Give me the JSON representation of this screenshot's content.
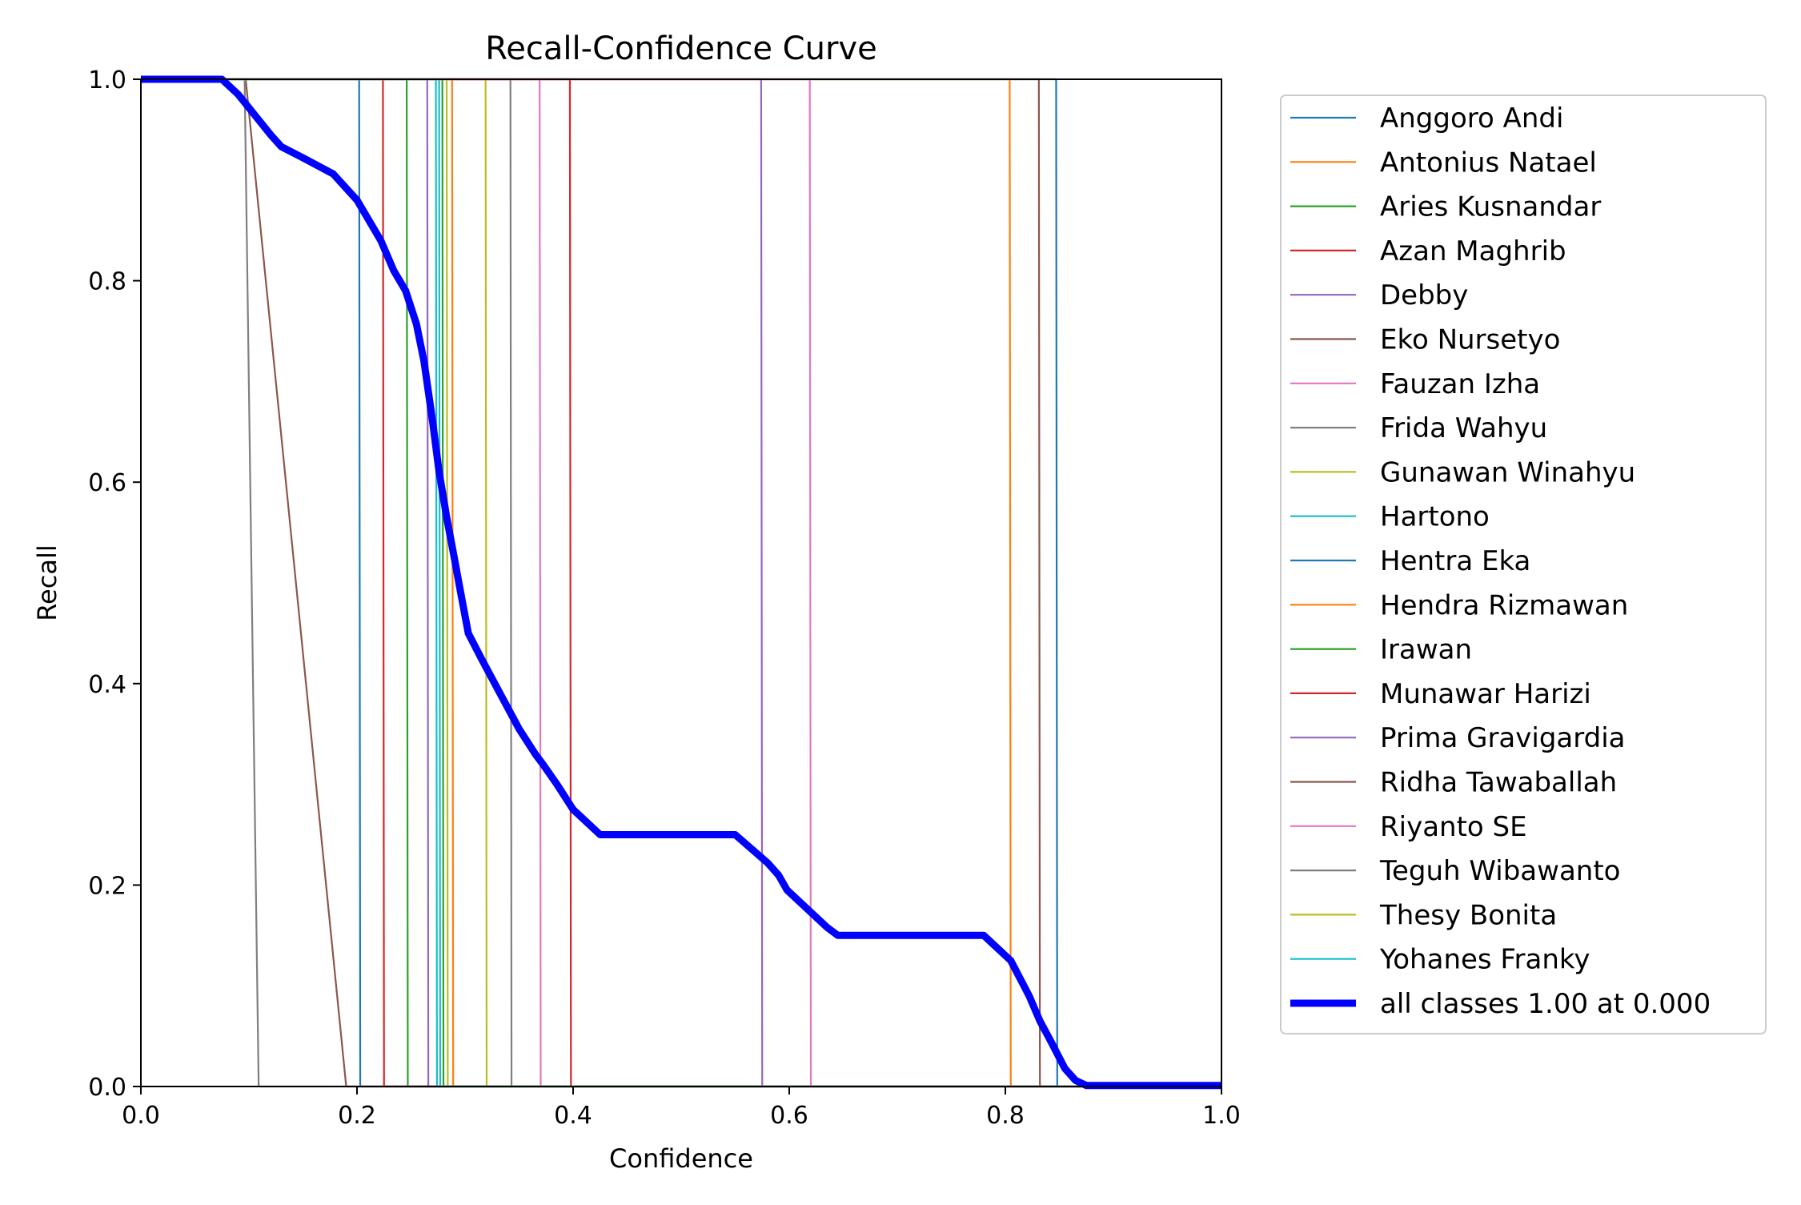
{
  "chart_data": {
    "type": "line",
    "title": "Recall-Confidence Curve",
    "xlabel": "Confidence",
    "ylabel": "Recall",
    "xlim": [
      0.0,
      1.0
    ],
    "ylim": [
      0.0,
      1.0
    ],
    "x_ticks": [
      "0.0",
      "0.2",
      "0.4",
      "0.6",
      "0.8",
      "1.0"
    ],
    "y_ticks": [
      "0.0",
      "0.2",
      "0.4",
      "0.6",
      "0.8",
      "1.0"
    ],
    "grid": false,
    "legend_position": "outside-right",
    "series": [
      {
        "name": "Anggoro Andi",
        "color": "#1f77b4",
        "x": [
          0,
          0.202,
          0.203,
          1.0
        ],
        "y": [
          1,
          1,
          0,
          0
        ]
      },
      {
        "name": "Antonius Natael",
        "color": "#ff7f0e",
        "x": [
          0,
          0.288,
          0.289,
          1.0
        ],
        "y": [
          1,
          1,
          0,
          0
        ]
      },
      {
        "name": "Aries Kusnandar",
        "color": "#2ca02c",
        "x": [
          0,
          0.246,
          0.247,
          1.0
        ],
        "y": [
          1,
          1,
          0,
          0
        ]
      },
      {
        "name": "Azan Maghrib",
        "color": "#d62728",
        "x": [
          0,
          0.224,
          0.225,
          1.0
        ],
        "y": [
          1,
          1,
          0,
          0
        ]
      },
      {
        "name": "Debby",
        "color": "#9467bd",
        "x": [
          0,
          0.265,
          0.266,
          1.0
        ],
        "y": [
          1,
          1,
          0,
          0
        ]
      },
      {
        "name": "Eko Nursetyo",
        "color": "#8c564b",
        "x": [
          0,
          0.831,
          0.832,
          1.0
        ],
        "y": [
          1,
          1,
          0,
          0
        ]
      },
      {
        "name": "Fauzan Izha",
        "color": "#e377c2",
        "x": [
          0,
          0.369,
          0.37,
          1.0
        ],
        "y": [
          1,
          1,
          0,
          0
        ]
      },
      {
        "name": "Frida Wahyu",
        "color": "#7f7f7f",
        "x": [
          0,
          0.342,
          0.343,
          1.0
        ],
        "y": [
          1,
          1,
          0,
          0
        ]
      },
      {
        "name": "Gunawan Winahyu",
        "color": "#bcbd22",
        "x": [
          0,
          0.319,
          0.32,
          1.0
        ],
        "y": [
          1,
          1,
          0,
          0
        ]
      },
      {
        "name": "Hartono",
        "color": "#17becf",
        "x": [
          0,
          0.276,
          0.277,
          1.0
        ],
        "y": [
          1,
          1,
          0,
          0
        ]
      },
      {
        "name": "Hentra Eka",
        "color": "#1f77b4",
        "x": [
          0,
          0.847,
          0.848,
          1.0
        ],
        "y": [
          1,
          1,
          0,
          0
        ]
      },
      {
        "name": "Hendra Rizmawan",
        "color": "#ff7f0e",
        "x": [
          0,
          0.804,
          0.805,
          1.0
        ],
        "y": [
          1,
          1,
          0,
          0
        ]
      },
      {
        "name": "Irawan",
        "color": "#2ca02c",
        "x": [
          0,
          0.279,
          0.28,
          1.0
        ],
        "y": [
          1,
          1,
          0,
          0
        ]
      },
      {
        "name": "Munawar Harizi",
        "color": "#d62728",
        "x": [
          0,
          0.397,
          0.398,
          1.0
        ],
        "y": [
          1,
          1,
          0,
          0
        ]
      },
      {
        "name": "Prima Gravigardia",
        "color": "#9467bd",
        "x": [
          0,
          0.574,
          0.575,
          1.0
        ],
        "y": [
          1,
          1,
          0,
          0
        ]
      },
      {
        "name": "Ridha Tawaballah",
        "color": "#8c564b",
        "x": [
          0,
          0.097,
          0.19,
          1.0
        ],
        "y": [
          1,
          1,
          0,
          0
        ]
      },
      {
        "name": "Riyanto SE",
        "color": "#e377c2",
        "x": [
          0,
          0.619,
          0.62,
          1.0
        ],
        "y": [
          1,
          1,
          0,
          0
        ]
      },
      {
        "name": "Teguh Wibawanto",
        "color": "#7f7f7f",
        "x": [
          0,
          0.096,
          0.109,
          1.0
        ],
        "y": [
          1,
          1,
          0,
          0
        ]
      },
      {
        "name": "Thesy Bonita",
        "color": "#bcbd22",
        "x": [
          0,
          0.283,
          0.284,
          1.0
        ],
        "y": [
          1,
          1,
          0,
          0
        ]
      },
      {
        "name": "Yohanes Franky",
        "color": "#17becf",
        "x": [
          0,
          0.273,
          0.274,
          1.0
        ],
        "y": [
          1,
          1,
          0,
          0
        ]
      },
      {
        "name": "all classes 1.00 at 0.000",
        "color": "#0000ff",
        "bold": true,
        "x": [
          0,
          0.075,
          0.09,
          0.105,
          0.12,
          0.13,
          0.15,
          0.178,
          0.2,
          0.222,
          0.234,
          0.245,
          0.255,
          0.262,
          0.27,
          0.276,
          0.283,
          0.29,
          0.296,
          0.303,
          0.315,
          0.33,
          0.35,
          0.365,
          0.372,
          0.385,
          0.4,
          0.425,
          0.45,
          0.5,
          0.55,
          0.58,
          0.59,
          0.598,
          0.615,
          0.635,
          0.645,
          0.7,
          0.78,
          0.805,
          0.822,
          0.832,
          0.842,
          0.855,
          0.865,
          0.875,
          1.0
        ],
        "y": [
          1,
          1,
          0.985,
          0.965,
          0.945,
          0.933,
          0.922,
          0.906,
          0.88,
          0.84,
          0.81,
          0.79,
          0.757,
          0.72,
          0.66,
          0.61,
          0.565,
          0.525,
          0.49,
          0.45,
          0.425,
          0.395,
          0.355,
          0.33,
          0.32,
          0.3,
          0.275,
          0.25,
          0.25,
          0.25,
          0.25,
          0.222,
          0.21,
          0.195,
          0.178,
          0.158,
          0.15,
          0.15,
          0.15,
          0.125,
          0.09,
          0.065,
          0.045,
          0.018,
          0.006,
          0.001,
          0.001
        ]
      }
    ]
  }
}
